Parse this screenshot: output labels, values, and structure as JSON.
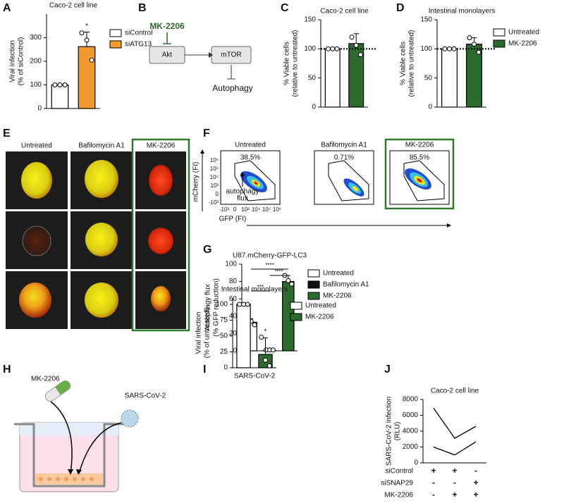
{
  "panel_labels": [
    "A",
    "B",
    "C",
    "D",
    "E",
    "F",
    "G",
    "H",
    "I",
    "J"
  ],
  "panel_b": {
    "drug": "MK-2206",
    "nodes": [
      "Akt",
      "mTOR"
    ],
    "outcome": "Autophagy"
  },
  "panel_e": {
    "columns": [
      "Untreated",
      "Bafilomycin A1",
      "MK-2206"
    ]
  },
  "panel_f": {
    "columns": [
      "Untreated",
      "Bafilomycin A1",
      "MK-2206"
    ],
    "percentages": [
      "38.5%",
      "0.71%",
      "85.5%"
    ],
    "y_label": "mCherry (FI)",
    "x_label": "GFP (FI)",
    "annotation": [
      "autophagy",
      "flux"
    ],
    "yticks": [
      "10⁶",
      "10⁵",
      "10⁴",
      "10³",
      "0",
      "-10³"
    ],
    "xticks": [
      "-10³",
      "0",
      "10³",
      "10⁴",
      "10⁵",
      "10⁶"
    ]
  },
  "panel_h": {
    "drug": "MK-2206",
    "virus": "SARS-CoV-2"
  },
  "chart_data": [
    {
      "type": "bar",
      "title": "Caco-2 cell line",
      "ylabel": [
        "Viral infection",
        "(% of siControl)"
      ],
      "ylim": [
        0,
        400
      ],
      "yticks": [
        0,
        100,
        200,
        300
      ],
      "legend": "right",
      "series": [
        {
          "name": "siControl",
          "color": "#ffffff",
          "values": [
            100
          ],
          "points": [
            [
              100,
              100,
              100
            ]
          ]
        },
        {
          "name": "siATG13",
          "color": "#f39a2e",
          "values": [
            262
          ],
          "errors": [
            62
          ],
          "points": [
            [
              320,
              290,
              205
            ]
          ]
        }
      ],
      "significance": [
        "*"
      ]
    },
    {
      "type": "bar",
      "title": "Caco-2 cell line",
      "ylabel": [
        "% Viable cells",
        "(relative to untreated)"
      ],
      "ylim": [
        0,
        150
      ],
      "yticks": [
        0,
        50,
        100,
        150
      ],
      "reference_line": 100,
      "series": [
        {
          "color": "#ffffff",
          "values": [
            100
          ],
          "points": [
            [
              100,
              100,
              100
            ]
          ]
        },
        {
          "color": "#2d6a2d",
          "values": [
            109
          ],
          "errors": [
            17
          ],
          "points": [
            [
              120,
              106,
              90
            ]
          ]
        }
      ]
    },
    {
      "type": "bar",
      "title": "Intestinal monolayers",
      "ylabel": [
        "% Viable cells",
        "(relative to untreated)"
      ],
      "ylim": [
        0,
        150
      ],
      "yticks": [
        0,
        50,
        100,
        150
      ],
      "reference_line": 100,
      "legend": "right",
      "series": [
        {
          "name": "Untreated",
          "color": "#ffffff",
          "values": [
            100
          ],
          "points": [
            [
              100,
              100,
              100
            ]
          ]
        },
        {
          "name": "MK-2206",
          "color": "#2d6a2d",
          "values": [
            108
          ],
          "errors": [
            11
          ],
          "points": [
            [
              119,
              108,
              94
            ]
          ]
        }
      ]
    },
    {
      "type": "bar",
      "title": "U87.mCherry-GFP-LC3",
      "ylabel": [
        "Autophagy flux",
        "(% GFP reduction)"
      ],
      "ylim": [
        0,
        100
      ],
      "yticks": [
        0,
        20,
        40,
        60,
        80,
        100
      ],
      "legend": "right",
      "series": [
        {
          "name": "Untreated",
          "color": "#ffffff",
          "values": [
            33
          ],
          "errors": [
            4
          ],
          "points": [
            [
              37,
              34,
              30
            ]
          ]
        },
        {
          "name": "Bafilomycin A1",
          "color": "#111111",
          "values": [
            1
          ],
          "errors": [
            0.5
          ],
          "points": [
            [
              1,
              1,
              1
            ]
          ]
        },
        {
          "name": "MK-2206",
          "color": "#2d6a2d",
          "values": [
            80
          ],
          "errors": [
            7
          ],
          "points": [
            [
              87,
              81,
              77
            ]
          ]
        }
      ],
      "significance": [
        "***",
        "****",
        "****"
      ]
    },
    {
      "type": "bar",
      "title": "Intestinal monolayers",
      "ylabel": [
        "Viral infection",
        "(% of untreated)"
      ],
      "ylim": [
        0,
        110
      ],
      "yticks": [
        0,
        25,
        50,
        75,
        100
      ],
      "legend": "right",
      "categories": [
        "SARS-CoV-2"
      ],
      "series": [
        {
          "name": "Untreated",
          "color": "#ffffff",
          "values": [
            100
          ],
          "points": [
            [
              100,
              100,
              100
            ]
          ]
        },
        {
          "name": "MK-2206",
          "color": "#2d6a2d",
          "values": [
            21
          ],
          "errors": [
            26
          ],
          "points": [
            [
              48,
              12,
              3
            ]
          ]
        }
      ],
      "significance": [
        "*"
      ]
    },
    {
      "type": "line",
      "title": "Caco-2 cell line",
      "ylabel": [
        "SARS-CoV-2 infection",
        "(RLU)"
      ],
      "ylim": [
        0,
        8000
      ],
      "yticks": [
        0,
        2000,
        4000,
        6000,
        8000
      ],
      "series": [
        {
          "color": "#000000",
          "values": [
            6900,
            3100,
            4600
          ]
        },
        {
          "color": "#000000",
          "values": [
            2000,
            1000,
            2650
          ]
        }
      ],
      "conditions": [
        {
          "label": "siControl",
          "marks": [
            "+",
            "+",
            "-"
          ]
        },
        {
          "label": "siSNAP29",
          "marks": [
            "-",
            "-",
            "+"
          ]
        },
        {
          "label": "MK-2206",
          "marks": [
            "-",
            "+",
            "+"
          ]
        }
      ]
    }
  ]
}
